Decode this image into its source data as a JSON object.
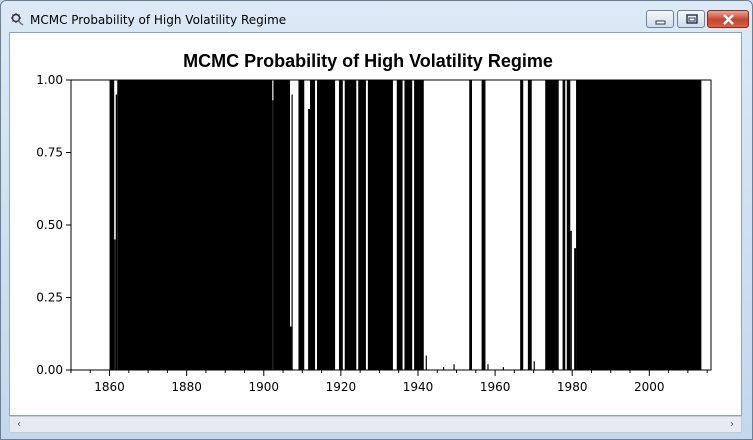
{
  "window": {
    "title": "MCMC Probability of High Volatility Regime",
    "icon": "app-gear-icon",
    "controls": [
      "minimize-icon",
      "maximize-icon",
      "close-icon"
    ]
  },
  "scrollbar": {
    "left_arrow": "‹",
    "right_arrow": "›"
  },
  "chart_data": {
    "type": "bar",
    "title": "MCMC Probability of High Volatility Regime",
    "xlabel": "",
    "ylabel": "",
    "xlim": [
      1850,
      2016
    ],
    "ylim": [
      0,
      1
    ],
    "x_ticks": [
      1860,
      1880,
      1900,
      1920,
      1940,
      1960,
      1980,
      2000
    ],
    "y_ticks": [
      0,
      0.25,
      0.5,
      0.75,
      1
    ],
    "y_tick_labels": [
      "0.00",
      "0.25",
      "0.50",
      "0.75",
      "1.00"
    ],
    "grid": false,
    "legend": "none",
    "bar_color": "#000000",
    "segments": [
      {
        "start": 1860.0,
        "end": 1861.2,
        "value": 1.0
      },
      {
        "start": 1861.2,
        "end": 1861.6,
        "value": 0.45
      },
      {
        "start": 1861.6,
        "end": 1862.0,
        "value": 0.95
      },
      {
        "start": 1862.0,
        "end": 1902.2,
        "value": 1.0
      },
      {
        "start": 1902.2,
        "end": 1902.5,
        "value": 0.93
      },
      {
        "start": 1902.5,
        "end": 1906.8,
        "value": 1.0
      },
      {
        "start": 1906.8,
        "end": 1907.2,
        "value": 0.15
      },
      {
        "start": 1907.2,
        "end": 1907.5,
        "value": 0.95
      },
      {
        "start": 1909.0,
        "end": 1910.5,
        "value": 1.0
      },
      {
        "start": 1911.5,
        "end": 1912.0,
        "value": 0.9
      },
      {
        "start": 1912.0,
        "end": 1913.3,
        "value": 1.0
      },
      {
        "start": 1913.8,
        "end": 1918.5,
        "value": 1.0
      },
      {
        "start": 1919.5,
        "end": 1920.5,
        "value": 1.0
      },
      {
        "start": 1921.0,
        "end": 1924.0,
        "value": 1.0
      },
      {
        "start": 1924.5,
        "end": 1926.5,
        "value": 1.0
      },
      {
        "start": 1927.0,
        "end": 1933.5,
        "value": 1.0
      },
      {
        "start": 1934.5,
        "end": 1936.0,
        "value": 1.0
      },
      {
        "start": 1936.5,
        "end": 1938.5,
        "value": 1.0
      },
      {
        "start": 1939.0,
        "end": 1941.5,
        "value": 1.0
      },
      {
        "start": 1942.0,
        "end": 1942.3,
        "value": 0.05
      },
      {
        "start": 1946.5,
        "end": 1946.8,
        "value": 0.01
      },
      {
        "start": 1949.2,
        "end": 1949.5,
        "value": 0.02
      },
      {
        "start": 1953.3,
        "end": 1954.0,
        "value": 1.0
      },
      {
        "start": 1956.5,
        "end": 1957.5,
        "value": 1.0
      },
      {
        "start": 1958.0,
        "end": 1958.3,
        "value": 0.02
      },
      {
        "start": 1962.0,
        "end": 1962.3,
        "value": 0.01
      },
      {
        "start": 1966.5,
        "end": 1967.3,
        "value": 1.0
      },
      {
        "start": 1968.5,
        "end": 1969.5,
        "value": 1.0
      },
      {
        "start": 1970.0,
        "end": 1970.3,
        "value": 0.03
      },
      {
        "start": 1973.0,
        "end": 1976.5,
        "value": 1.0
      },
      {
        "start": 1977.5,
        "end": 1978.2,
        "value": 1.0
      },
      {
        "start": 1978.6,
        "end": 1979.5,
        "value": 1.0
      },
      {
        "start": 1979.5,
        "end": 1979.9,
        "value": 0.48
      },
      {
        "start": 1980.5,
        "end": 1981.0,
        "value": 0.42
      },
      {
        "start": 1981.0,
        "end": 2013.5,
        "value": 1.0
      }
    ]
  }
}
